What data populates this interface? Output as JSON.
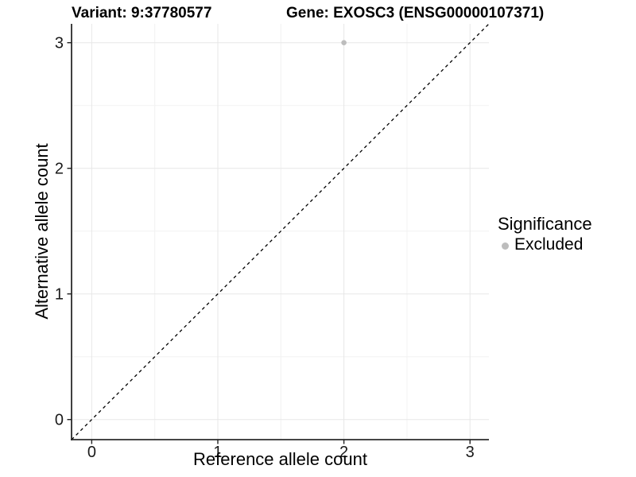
{
  "figure": {
    "title_left": "Variant: 9:37780577",
    "title_right": "Gene: EXOSC3 (ENSG00000107371)"
  },
  "chart_data": {
    "type": "scatter",
    "title": "Variant: 9:37780577 / Gene: EXOSC3 (ENSG00000107371)",
    "xlabel": "Reference allele count",
    "ylabel": "Alternative allele count",
    "xlim": [
      -0.16,
      3.15
    ],
    "ylim": [
      -0.16,
      3.15
    ],
    "x_ticks": [
      0,
      1,
      2,
      3
    ],
    "y_ticks": [
      0,
      1,
      2,
      3
    ],
    "x_minor_ticks": [
      0.5,
      1.5,
      2.5
    ],
    "y_minor_ticks": [
      0.5,
      1.5,
      2.5
    ],
    "grid": "major and minor, light gray on white",
    "series": [
      {
        "name": "Excluded",
        "color": "#bdbdbd",
        "points": [
          {
            "x": 2,
            "y": 3
          }
        ]
      }
    ],
    "reference_line": {
      "type": "identity (y = x)",
      "style": "dashed",
      "color": "#000000"
    },
    "legend": {
      "title": "Significance",
      "position": "right",
      "items": [
        {
          "label": "Excluded",
          "color": "#bdbdbd"
        }
      ]
    },
    "colors": {
      "background": "#ffffff",
      "grid_major": "#e7e7e7",
      "grid_minor": "#f2f2f2",
      "axis_line": "#2b2b2b",
      "tick_mark": "#222222",
      "tick_label": "#1a1a1a",
      "point": "#bdbdbd"
    }
  }
}
